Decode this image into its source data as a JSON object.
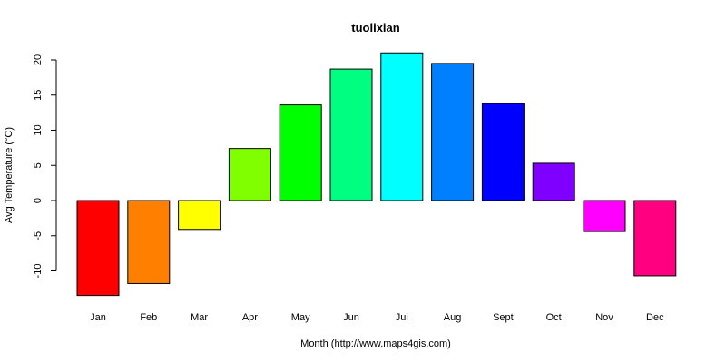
{
  "chart_data": {
    "type": "bar",
    "title": "tuolixian",
    "xlabel": "Month (http://www.maps4gis.com)",
    "ylabel": "Avg Temperature (°C)",
    "categories": [
      "Jan",
      "Feb",
      "Mar",
      "Apr",
      "May",
      "Jun",
      "Jul",
      "Aug",
      "Sept",
      "Oct",
      "Nov",
      "Dec"
    ],
    "values": [
      -13.5,
      -11.8,
      -4.1,
      7.4,
      13.6,
      18.7,
      21.0,
      19.5,
      13.8,
      5.3,
      -4.4,
      -10.7
    ],
    "colors": [
      "#ff0000",
      "#ff8000",
      "#ffff00",
      "#80ff00",
      "#00ff00",
      "#00ff80",
      "#00ffff",
      "#0080ff",
      "#0000ff",
      "#8000ff",
      "#ff00ff",
      "#ff0080"
    ],
    "yticks": [
      -10,
      -5,
      0,
      5,
      10,
      15,
      20
    ],
    "ylim": [
      -13.5,
      21
    ],
    "grid": false,
    "legend": "none"
  }
}
